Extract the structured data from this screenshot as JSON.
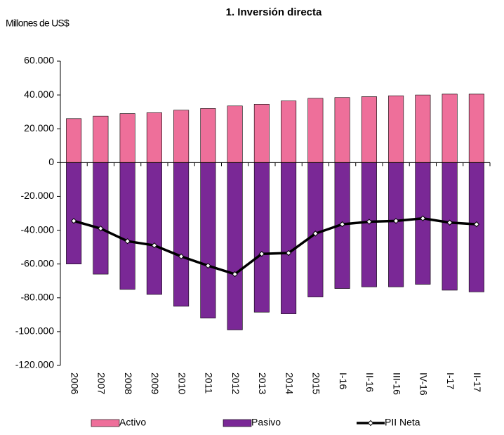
{
  "chart_data": {
    "type": "bar_line",
    "title": "1. Inversión directa",
    "y_label": "Millones de US$",
    "categories": [
      "2006",
      "2007",
      "2008",
      "2009",
      "2010",
      "2011",
      "2012",
      "2013",
      "2014",
      "2015",
      "I-16",
      "II-16",
      "III-16",
      "IV-16",
      "I-17",
      "II-17"
    ],
    "series": [
      {
        "name": "Activo",
        "type": "bar",
        "color": "#ee6f9a",
        "values": [
          26000,
          27500,
          29000,
          29500,
          31000,
          32000,
          33500,
          34500,
          36500,
          38000,
          38500,
          39000,
          39500,
          40000,
          40500,
          40500
        ]
      },
      {
        "name": "Pasivo",
        "type": "bar",
        "color": "#7a2896",
        "values": [
          -60000,
          -66000,
          -75000,
          -78000,
          -85000,
          -92000,
          -99000,
          -88500,
          -89500,
          -79500,
          -74500,
          -73500,
          -73500,
          -72000,
          -75500,
          -76500
        ]
      },
      {
        "name": "PII Neta",
        "type": "line",
        "color": "#000000",
        "values": [
          -34500,
          -39000,
          -46500,
          -49000,
          -55500,
          -61000,
          -66000,
          -54000,
          -53500,
          -42000,
          -36500,
          -35000,
          -34500,
          -33000,
          -35500,
          -36500
        ]
      }
    ],
    "ylim": [
      -120000,
      60000
    ],
    "yticks": [
      {
        "value": -120000,
        "label": "-120.000"
      },
      {
        "value": -100000,
        "label": "-100.000"
      },
      {
        "value": -80000,
        "label": "-80.000"
      },
      {
        "value": -60000,
        "label": "-60.000"
      },
      {
        "value": -40000,
        "label": "-40.000"
      },
      {
        "value": -20000,
        "label": "-20.000"
      },
      0,
      {
        "value": 20000,
        "label": "20.000"
      },
      {
        "value": 40000,
        "label": "40.000"
      },
      {
        "value": 60000,
        "label": "60.000"
      }
    ],
    "grid": false
  }
}
